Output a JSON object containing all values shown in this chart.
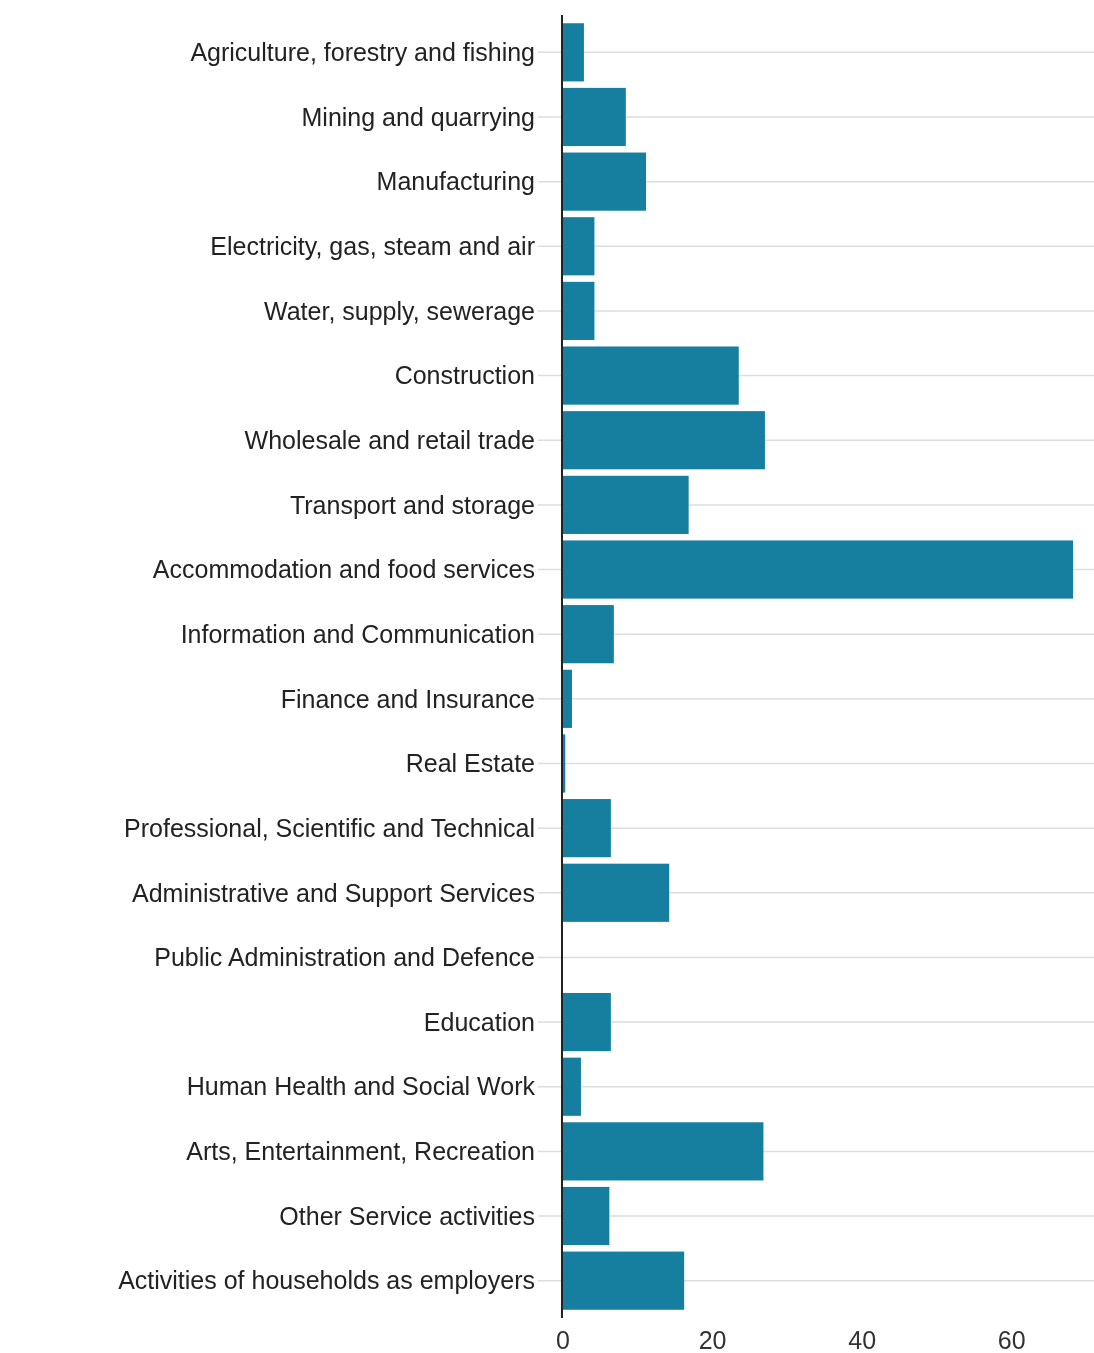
{
  "chart_data": {
    "type": "bar",
    "orientation": "horizontal",
    "categories": [
      "Agriculture, forestry and fishing",
      "Mining and quarrying",
      "Manufacturing",
      "Electricity, gas, steam and air",
      "Water, supply, sewerage",
      "Construction",
      "Wholesale and retail trade",
      "Transport and storage",
      "Accommodation and food services",
      "Information and Communication",
      "Finance and Insurance",
      "Real Estate",
      "Professional, Scientific and Technical",
      "Administrative and Support Services",
      "Public Administration and Defence",
      "Education",
      "Human Health and Social Work",
      "Arts, Entertainment, Recreation",
      "Other Service activities",
      "Activities of households as employers"
    ],
    "values": [
      2.8,
      8.4,
      11.1,
      4.2,
      4.2,
      23.5,
      27.0,
      16.8,
      68.2,
      6.8,
      1.2,
      0.3,
      6.4,
      14.2,
      0,
      6.4,
      2.4,
      26.8,
      6.2,
      16.2
    ],
    "color": "#167fa0",
    "xlim": [
      0,
      71
    ],
    "xticks": [
      0,
      20,
      40,
      60
    ],
    "grid": "y"
  }
}
